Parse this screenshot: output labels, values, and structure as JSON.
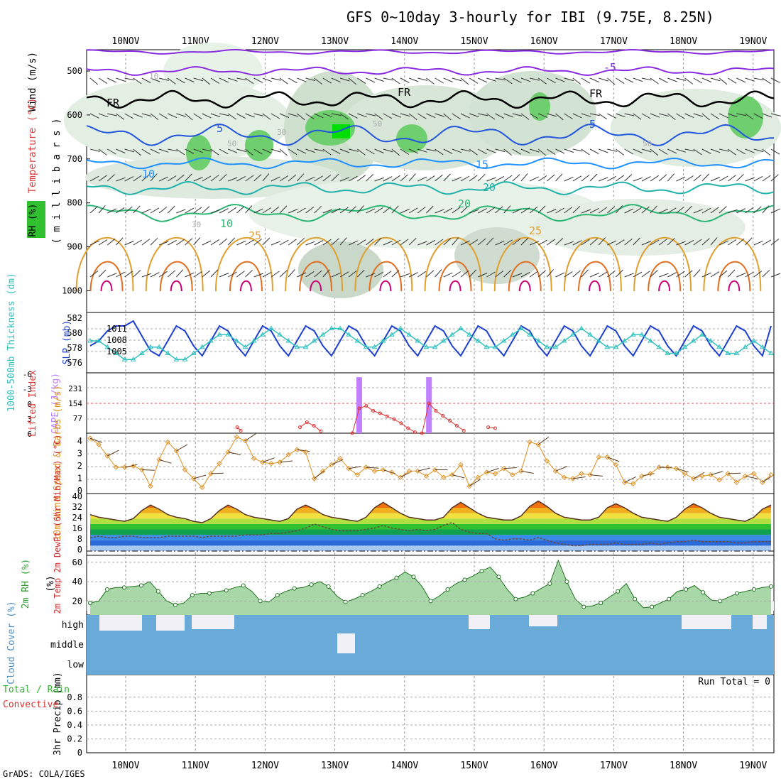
{
  "title": "GFS 0~10day 3-hourly for IBI (9.75E, 8.25N)",
  "credit": "GrADS: COLA/IGES",
  "date_labels": [
    "10NOV",
    "11NOV",
    "12NOV",
    "13NOV",
    "14NOV",
    "15NOV",
    "16NOV",
    "17NOV",
    "18NOV",
    "19NOV"
  ],
  "colors": {
    "purple": "#8a2be2",
    "black": "#000000",
    "blue5": "#2255dd",
    "blue10": "#1e90ff",
    "cyan15": "#20b2aa",
    "green20": "#2bb673",
    "orange25": "#e0a030",
    "orange30": "#e07020",
    "magenta": "#cc0077",
    "slp": "#1c3fd0",
    "thick": "#30c0c0",
    "cape": "#c080ff",
    "li": "#e03030",
    "wind": "#e09020",
    "rh": "#30a030",
    "cloud": "#6aaad8"
  },
  "panels": [
    {
      "id": "upper-air",
      "type": "contour",
      "ylabel_parts": [
        "Wind (m/s)",
        "Temperature (°C)"
      ],
      "rh_label": "RH (%)",
      "pressure_label": "( m i l l i b a r s )",
      "y_ticks": [
        "500",
        "600",
        "700",
        "800",
        "900",
        "1000"
      ],
      "contour_labels": [
        "-5",
        "FR",
        "FR",
        "FR",
        "5",
        "5",
        "10",
        "10",
        "15",
        "20",
        "20",
        "25",
        "25",
        "10",
        "50",
        "50",
        "30",
        "30",
        "50"
      ]
    },
    {
      "id": "slp-thickness",
      "type": "line",
      "ylabel_left": "1000-500mb Thickness (dm)",
      "ylabel_right": "SLP (mb)",
      "left_ticks": [
        "582",
        "580",
        "578",
        "576"
      ],
      "right_ticks": [
        "1011",
        "1008",
        "1005"
      ]
    },
    {
      "id": "cape-li",
      "type": "bar",
      "ylabel_left": "Lifted Index",
      "ylabel_right": "CAPE (J/kg)",
      "left_ticks": [
        "-6",
        "-3",
        "0",
        "3",
        "6"
      ],
      "right_ticks": [
        "231",
        "154",
        "77"
      ]
    },
    {
      "id": "wind10m",
      "type": "line",
      "ylabel": "10m Wind Speed & Barbs (m/s)",
      "y_ticks": [
        "4",
        "3",
        "2",
        "1",
        "0"
      ]
    },
    {
      "id": "temp2m",
      "type": "area",
      "ylabel": "2m Temp 2m DewPt (6hr Min/Max) (°C)",
      "y_ticks": [
        "40",
        "32",
        "24",
        "16",
        "8",
        "0"
      ]
    },
    {
      "id": "rh2m",
      "type": "area",
      "ylabel": "2m RH (%)",
      "y_ticks": [
        "60",
        "40",
        "20"
      ]
    },
    {
      "id": "cloud",
      "type": "area",
      "ylabel": "Cloud Cover (%)",
      "levels": [
        "high",
        "middle",
        "low"
      ]
    },
    {
      "id": "precip",
      "type": "bar",
      "ylabel_left": "Total / Rain",
      "ylabel_conv": "Convective",
      "ylabel": "3hr Precip (mm)",
      "y_ticks": [
        "0.8",
        "0.6",
        "0.4",
        "0.2",
        "0"
      ],
      "run_total": "Run Total = 0"
    }
  ],
  "chart_data": [
    {
      "type": "line",
      "title": "",
      "name": "SLP (mb)",
      "ylim": [
        1003,
        1013
      ],
      "x_step_hours": 3,
      "values": [
        1007,
        1008,
        1010,
        1011,
        1011,
        1012,
        1009,
        1006,
        1005,
        1008,
        1011,
        1010,
        1007,
        1005,
        1008,
        1011,
        1010,
        1007,
        1005,
        1008,
        1011,
        1010,
        1007,
        1005,
        1008,
        1011,
        1010,
        1007,
        1005,
        1008,
        1011,
        1010,
        1007,
        1005,
        1008,
        1011,
        1010,
        1007,
        1005,
        1008,
        1011,
        1010,
        1007,
        1005,
        1008,
        1011,
        1010,
        1007,
        1005,
        1008,
        1011,
        1010,
        1007,
        1005,
        1008,
        1011,
        1010,
        1007,
        1005,
        1008,
        1011,
        1010,
        1007,
        1005,
        1008,
        1011,
        1010,
        1007,
        1005,
        1008,
        1011,
        1010,
        1007,
        1005,
        1008,
        1011,
        1010,
        1007,
        1005,
        1011
      ]
    },
    {
      "type": "line",
      "name": "1000-500mb Thickness (dm)",
      "ylim": [
        575,
        583
      ],
      "values": [
        579,
        579,
        578,
        577,
        576,
        576,
        577,
        578,
        578,
        577,
        576,
        576,
        577,
        578,
        579,
        580,
        580,
        579,
        578,
        579,
        580,
        581,
        580,
        579,
        578,
        578,
        579,
        580,
        581,
        581,
        580,
        579,
        578,
        578,
        579,
        580,
        581,
        580,
        579,
        578,
        578,
        579,
        580,
        581,
        580,
        579,
        578,
        578,
        579,
        580,
        581,
        580,
        579,
        578,
        578,
        579,
        580,
        581,
        580,
        579,
        578,
        578,
        579,
        580,
        580,
        579,
        578,
        577,
        577,
        578,
        579,
        580,
        579,
        578,
        577,
        577,
        578,
        579,
        578,
        577
      ]
    },
    {
      "type": "bar",
      "name": "CAPE (J/kg)",
      "ylim": [
        0,
        280
      ],
      "bars": [
        {
          "day": 13.35,
          "value": 260
        },
        {
          "day": 14.35,
          "value": 260
        }
      ]
    },
    {
      "type": "line",
      "name": "Lifted Index",
      "ylim": [
        6,
        -6
      ],
      "segments": [
        [
          [
            11.6,
            4.8
          ],
          [
            11.65,
            5.5
          ]
        ],
        [
          [
            12.5,
            4.8
          ],
          [
            12.6,
            3.8
          ],
          [
            12.7,
            4.5
          ],
          [
            12.8,
            5.6
          ]
        ],
        [
          [
            13.25,
            6
          ],
          [
            13.35,
            1
          ],
          [
            13.45,
            0.5
          ],
          [
            13.55,
            1.5
          ],
          [
            13.65,
            2
          ],
          [
            13.75,
            2.6
          ],
          [
            13.85,
            3.2
          ],
          [
            13.95,
            4
          ],
          [
            14.05,
            5
          ],
          [
            14.15,
            5.8
          ]
        ],
        [
          [
            14.25,
            6
          ],
          [
            14.35,
            0
          ],
          [
            14.45,
            1.5
          ],
          [
            14.55,
            2.5
          ],
          [
            14.65,
            3.5
          ],
          [
            14.75,
            4.5
          ],
          [
            14.85,
            5.5
          ]
        ],
        [
          [
            15.2,
            4.8
          ],
          [
            15.3,
            5
          ]
        ]
      ]
    },
    {
      "type": "line",
      "name": "10m Wind Speed (m/s)",
      "ylim": [
        0,
        4.5
      ],
      "values": [
        4.1,
        3.6,
        2.7,
        1.8,
        1.8,
        1.9,
        1.6,
        0.3,
        2.4,
        3.8,
        3.1,
        1.6,
        0.9,
        0.2,
        1.3,
        2.1,
        3.0,
        4.2,
        3.9,
        2.5,
        2.2,
        2.1,
        2.2,
        2.8,
        3.2,
        3.0,
        0.9,
        1.5,
        2.0,
        2.5,
        1.7,
        1.2,
        1.8,
        1.5,
        1.6,
        1.4,
        1.0,
        1.5,
        1.5,
        1.1,
        1.6,
        1.0,
        1.2,
        2.0,
        0.3,
        1.0,
        1.4,
        1.3,
        1.7,
        1.2,
        1.5,
        3.8,
        3.6,
        2.3,
        1.5,
        1.0,
        0.9,
        1.3,
        1.2,
        2.6,
        2.6,
        2.0,
        0.6,
        0.5,
        1.1,
        1.3,
        1.8,
        1.8,
        1.7,
        1.3,
        0.9,
        1.1,
        1.2,
        0.8,
        1.3,
        0.6,
        1.1,
        1.3,
        0.6,
        1.2
      ]
    },
    {
      "type": "area",
      "name": "2m Temp (°C)",
      "ylim": [
        0,
        42
      ],
      "values": [
        27,
        25,
        24,
        23,
        22,
        24,
        30,
        34,
        31,
        27,
        25,
        24,
        22,
        21,
        24,
        30,
        34,
        31,
        27,
        25,
        24,
        23,
        22,
        24,
        31,
        34,
        31,
        27,
        25,
        24,
        23,
        22,
        25,
        32,
        36,
        32,
        28,
        25,
        24,
        23,
        23,
        25,
        32,
        36,
        32,
        28,
        25,
        24,
        23,
        23,
        26,
        33,
        37,
        33,
        28,
        25,
        24,
        23,
        23,
        25,
        32,
        35,
        32,
        28,
        25,
        24,
        23,
        22,
        25,
        31,
        35,
        32,
        28,
        25,
        24,
        23,
        22,
        25,
        31,
        34
      ]
    },
    {
      "type": "line",
      "name": "2m DewPt (°C)",
      "ylim": [
        0,
        42
      ],
      "values": [
        10,
        11,
        10,
        10,
        11,
        11,
        10,
        10,
        10,
        11,
        11,
        11,
        11,
        10,
        11,
        11,
        11,
        11,
        12,
        12,
        12,
        13,
        13,
        14,
        15,
        17,
        20,
        18,
        16,
        15,
        15,
        15,
        16,
        17,
        19,
        17,
        16,
        15,
        16,
        15,
        16,
        19,
        21,
        16,
        14,
        13,
        13,
        9,
        8,
        9,
        9,
        8,
        10,
        8,
        6,
        5,
        4,
        4,
        5,
        5,
        5,
        6,
        5,
        5,
        5,
        6,
        5,
        6,
        7,
        7,
        8,
        7,
        7,
        7,
        7,
        6,
        6,
        7,
        7,
        7
      ]
    },
    {
      "type": "area",
      "name": "2m RH (%)",
      "ylim": [
        10,
        65
      ],
      "values": [
        18,
        20,
        32,
        34,
        34,
        35,
        36,
        40,
        30,
        20,
        16,
        18,
        26,
        28,
        28,
        30,
        31,
        34,
        36,
        30,
        20,
        19,
        26,
        30,
        33,
        34,
        37,
        40,
        35,
        25,
        19,
        22,
        26,
        30,
        35,
        40,
        44,
        50,
        45,
        35,
        20,
        25,
        32,
        38,
        42,
        46,
        51,
        55,
        45,
        32,
        22,
        24,
        28,
        33,
        38,
        62,
        40,
        22,
        14,
        15,
        18,
        24,
        30,
        38,
        22,
        13,
        14,
        18,
        22,
        30,
        32,
        36,
        29,
        21,
        20,
        24,
        28,
        30,
        32,
        34,
        35
      ]
    },
    {
      "type": "area",
      "name": "Cloud Cover (%)",
      "ylim": [
        0,
        100
      ]
    },
    {
      "type": "bar",
      "name": "3hr Precip (mm)",
      "ylim": [
        0,
        0.9
      ],
      "values": []
    }
  ]
}
